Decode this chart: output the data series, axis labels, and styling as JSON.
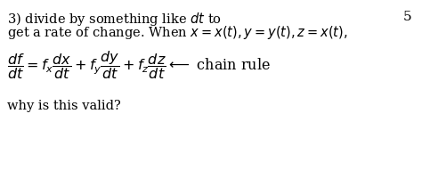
{
  "background_color": "#ffffff",
  "page_number": "5",
  "line1": "3) divide by something like $dt$ to",
  "line2": "get a rate of change. When $x = x(t), y = y(t), z = x(t),$",
  "equation": "$\\dfrac{df}{dt} = f_x\\dfrac{dx}{dt} + f_y\\dfrac{dy}{dt} + f_z\\dfrac{dz}{dt} \\longleftarrow$ chain rule",
  "line3": "why is this valid?",
  "text_color": "#000000",
  "fontsize_text": 10.5,
  "fontsize_eq": 11.5,
  "fontsize_page": 11
}
